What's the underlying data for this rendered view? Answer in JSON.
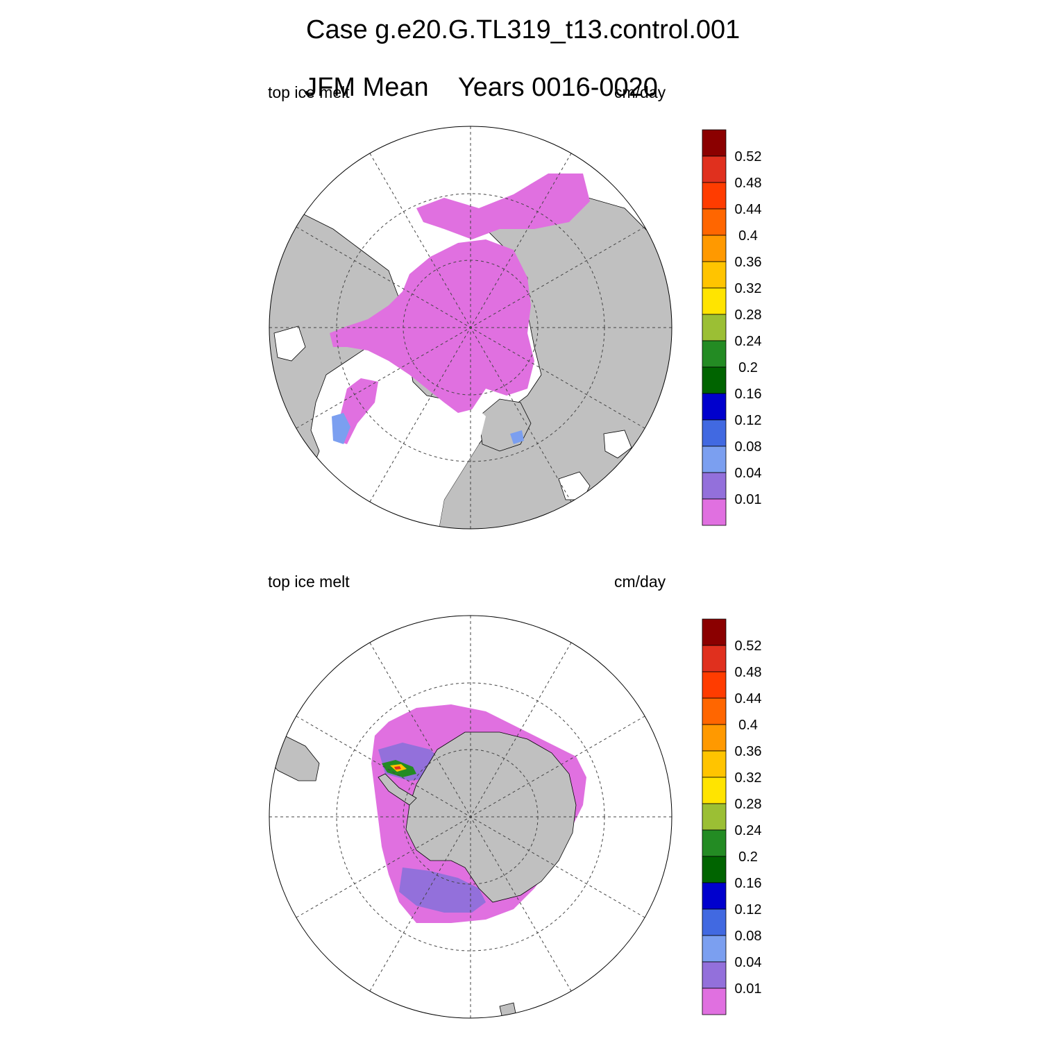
{
  "header": {
    "case_line": "Case g.e20.G.TL319_t13.control.001",
    "period_label": "JFM Mean",
    "years_label": "Years 0016-0020"
  },
  "panels": [
    {
      "id": "arctic",
      "left_label": "top ice melt",
      "right_label": "cm/day"
    },
    {
      "id": "antarctic",
      "left_label": "top ice melt",
      "right_label": "cm/day"
    }
  ],
  "colorbar": {
    "labels": [
      "0.52",
      "0.48",
      "0.44",
      "0.4",
      "0.36",
      "0.32",
      "0.28",
      "0.24",
      "0.2",
      "0.16",
      "0.12",
      "0.08",
      "0.04",
      "0.01"
    ],
    "colors": [
      "#8b0000",
      "#e0301e",
      "#ff3c00",
      "#ff6600",
      "#ff9900",
      "#ffc400",
      "#ffe400",
      "#9bbf34",
      "#238b23",
      "#006400",
      "#0000cd",
      "#4169e1",
      "#7b9ff0",
      "#9370db",
      "#e070e0"
    ]
  },
  "colors": {
    "land": "#c0c0c0",
    "ice_low": "#e070e0",
    "ocean": "#ffffff"
  }
}
